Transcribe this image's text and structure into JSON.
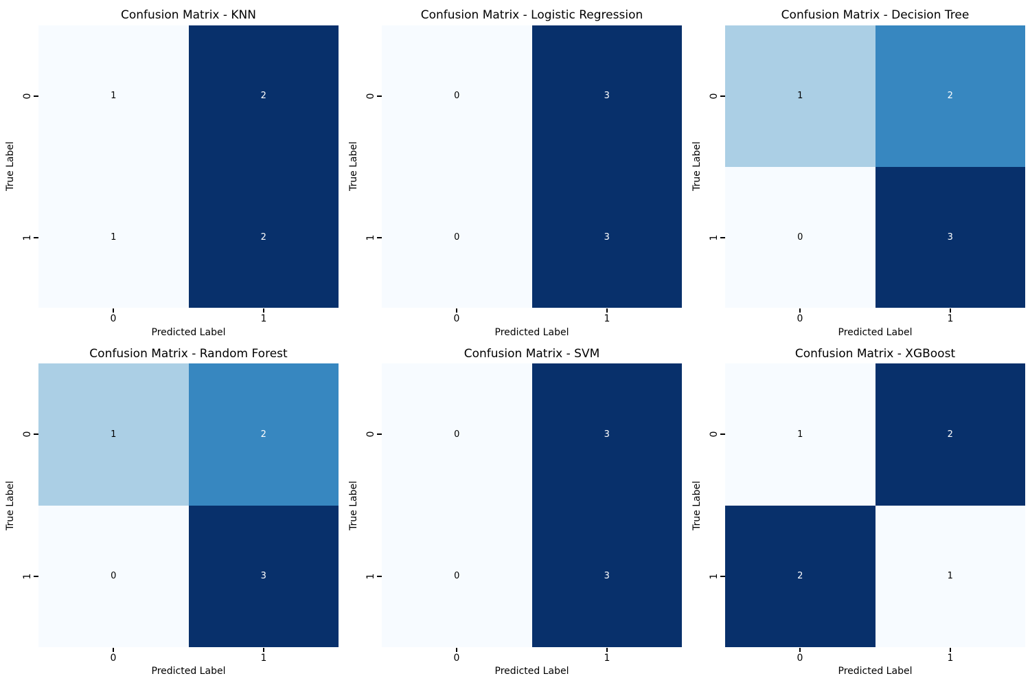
{
  "figure": {
    "background_color": "#ffffff",
    "colormap_name": "Blues",
    "palette": {
      "value_lowest": "#f7fbff",
      "value_low_mid": "#abcfe5",
      "value_high_mid": "#3787c0",
      "value_highest": "#08306b",
      "annotation_dark_text": "#000000",
      "annotation_light_text": "#ffffff",
      "tick_color": "#000000"
    }
  },
  "chart_data": [
    {
      "type": "heatmap",
      "title": "Confusion Matrix - KNN",
      "xlabel": "Predicted Label",
      "ylabel": "True Label",
      "x_ticks": [
        "0",
        "1"
      ],
      "y_ticks": [
        "0",
        "1"
      ],
      "values": [
        [
          1,
          2
        ],
        [
          1,
          2
        ]
      ],
      "legend": "none",
      "cell_colors": [
        [
          "#f7fbff",
          "#08306b"
        ],
        [
          "#f7fbff",
          "#08306b"
        ]
      ],
      "text_colors": [
        [
          "#000000",
          "#ffffff"
        ],
        [
          "#000000",
          "#ffffff"
        ]
      ]
    },
    {
      "type": "heatmap",
      "title": "Confusion Matrix - Logistic Regression",
      "xlabel": "Predicted Label",
      "ylabel": "True Label",
      "x_ticks": [
        "0",
        "1"
      ],
      "y_ticks": [
        "0",
        "1"
      ],
      "values": [
        [
          0,
          3
        ],
        [
          0,
          3
        ]
      ],
      "legend": "none",
      "cell_colors": [
        [
          "#f7fbff",
          "#08306b"
        ],
        [
          "#f7fbff",
          "#08306b"
        ]
      ],
      "text_colors": [
        [
          "#000000",
          "#ffffff"
        ],
        [
          "#000000",
          "#ffffff"
        ]
      ]
    },
    {
      "type": "heatmap",
      "title": "Confusion Matrix - Decision Tree",
      "xlabel": "Predicted Label",
      "ylabel": "True Label",
      "x_ticks": [
        "0",
        "1"
      ],
      "y_ticks": [
        "0",
        "1"
      ],
      "values": [
        [
          1,
          2
        ],
        [
          0,
          3
        ]
      ],
      "legend": "none",
      "cell_colors": [
        [
          "#abcfe5",
          "#3787c0"
        ],
        [
          "#f7fbff",
          "#08306b"
        ]
      ],
      "text_colors": [
        [
          "#000000",
          "#ffffff"
        ],
        [
          "#000000",
          "#ffffff"
        ]
      ]
    },
    {
      "type": "heatmap",
      "title": "Confusion Matrix - Random Forest",
      "xlabel": "Predicted Label",
      "ylabel": "True Label",
      "x_ticks": [
        "0",
        "1"
      ],
      "y_ticks": [
        "0",
        "1"
      ],
      "values": [
        [
          1,
          2
        ],
        [
          0,
          3
        ]
      ],
      "legend": "none",
      "cell_colors": [
        [
          "#abcfe5",
          "#3787c0"
        ],
        [
          "#f7fbff",
          "#08306b"
        ]
      ],
      "text_colors": [
        [
          "#000000",
          "#ffffff"
        ],
        [
          "#000000",
          "#ffffff"
        ]
      ]
    },
    {
      "type": "heatmap",
      "title": "Confusion Matrix - SVM",
      "xlabel": "Predicted Label",
      "ylabel": "True Label",
      "x_ticks": [
        "0",
        "1"
      ],
      "y_ticks": [
        "0",
        "1"
      ],
      "values": [
        [
          0,
          3
        ],
        [
          0,
          3
        ]
      ],
      "legend": "none",
      "cell_colors": [
        [
          "#f7fbff",
          "#08306b"
        ],
        [
          "#f7fbff",
          "#08306b"
        ]
      ],
      "text_colors": [
        [
          "#000000",
          "#ffffff"
        ],
        [
          "#000000",
          "#ffffff"
        ]
      ]
    },
    {
      "type": "heatmap",
      "title": "Confusion Matrix - XGBoost",
      "xlabel": "Predicted Label",
      "ylabel": "True Label",
      "x_ticks": [
        "0",
        "1"
      ],
      "y_ticks": [
        "0",
        "1"
      ],
      "values": [
        [
          1,
          2
        ],
        [
          2,
          1
        ]
      ],
      "legend": "none",
      "cell_colors": [
        [
          "#f7fbff",
          "#08306b"
        ],
        [
          "#08306b",
          "#f7fbff"
        ]
      ],
      "text_colors": [
        [
          "#000000",
          "#ffffff"
        ],
        [
          "#ffffff",
          "#000000"
        ]
      ]
    }
  ]
}
